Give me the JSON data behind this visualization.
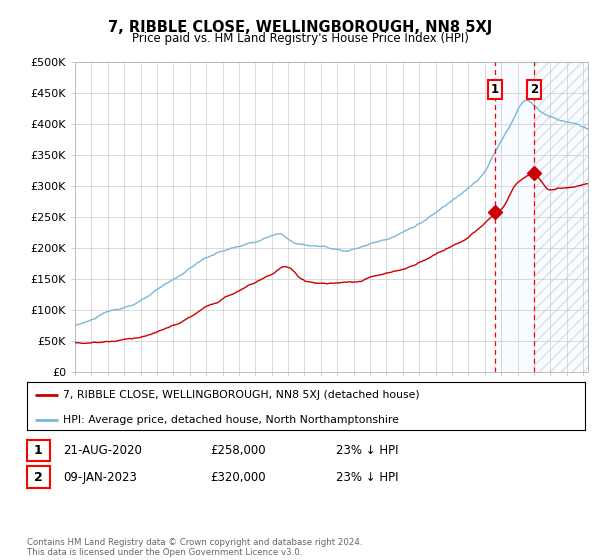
{
  "title": "7, RIBBLE CLOSE, WELLINGBOROUGH, NN8 5XJ",
  "subtitle": "Price paid vs. HM Land Registry's House Price Index (HPI)",
  "ylim": [
    0,
    500000
  ],
  "yticks": [
    0,
    50000,
    100000,
    150000,
    200000,
    250000,
    300000,
    350000,
    400000,
    450000,
    500000
  ],
  "xlim_start": 1995.3,
  "xlim_end": 2026.3,
  "hpi_color": "#7ab8d8",
  "price_color": "#cc0000",
  "marker1_date": 2020.64,
  "marker1_price": 258000,
  "marker1_label": "1",
  "marker2_date": 2023.03,
  "marker2_price": 320000,
  "marker2_label": "2",
  "legend_line1": "7, RIBBLE CLOSE, WELLINGBOROUGH, NN8 5XJ (detached house)",
  "legend_line2": "HPI: Average price, detached house, North Northamptonshire",
  "table_row1": [
    "1",
    "21-AUG-2020",
    "£258,000",
    "23% ↓ HPI"
  ],
  "table_row2": [
    "2",
    "09-JAN-2023",
    "£320,000",
    "23% ↓ HPI"
  ],
  "footer": "Contains HM Land Registry data © Crown copyright and database right 2024.\nThis data is licensed under the Open Government Licence v3.0.",
  "background_color": "#ffffff",
  "grid_color": "#cccccc",
  "shade_color": "#ddeeff"
}
